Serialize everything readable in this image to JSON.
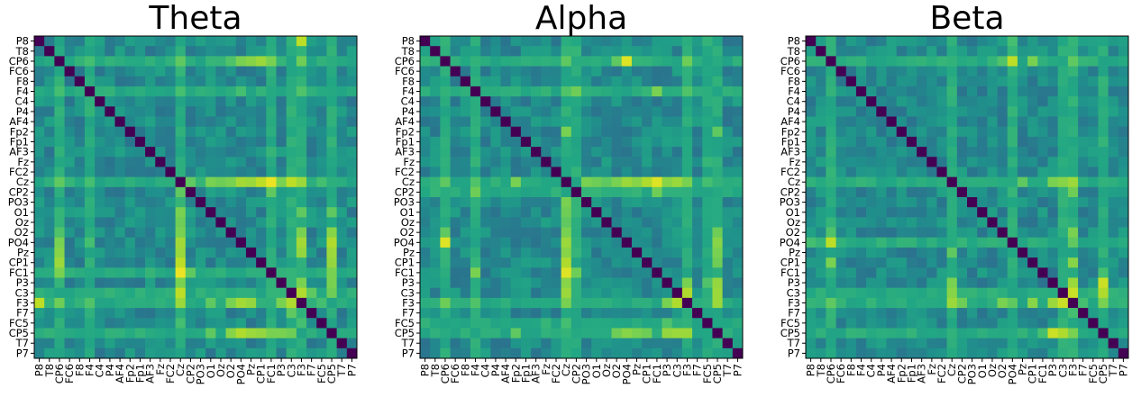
{
  "chart_data": {
    "type": "heatmap",
    "colormap": "viridis",
    "labels": [
      "P8",
      "T8",
      "CP6",
      "FC6",
      "F8",
      "F4",
      "C4",
      "P4",
      "AF4",
      "Fp2",
      "Fp1",
      "AF3",
      "Fz",
      "FC2",
      "Cz",
      "CP2",
      "PO3",
      "O1",
      "Oz",
      "O2",
      "PO4",
      "Pz",
      "CP1",
      "FC1",
      "P3",
      "C3",
      "F3",
      "F7",
      "FC5",
      "CP5",
      "T7",
      "P7"
    ],
    "value_range": [
      0,
      1
    ],
    "grid": false,
    "colorbar": false,
    "panels": [
      {
        "title": "Theta",
        "hubs": [
          {
            "label": "CP6",
            "values": {
              "F4": 0.7,
              "Cz": 0.75,
              "P4": 0.65,
              "O2": 0.72,
              "PO4": 0.8,
              "Pz": 0.82,
              "CP1": 0.85,
              "FC1": 0.8,
              "F3": 0.78
            }
          },
          {
            "label": "F4",
            "values": {
              "Cz": 0.7,
              "F3": 0.72,
              "PO4": 0.7
            }
          },
          {
            "label": "Cz",
            "values": {
              "CP2": 0.75,
              "O1": 0.8,
              "Oz": 0.78,
              "O2": 0.8,
              "PO4": 0.86,
              "Pz": 0.85,
              "CP1": 0.9,
              "FC1": 0.97,
              "P3": 0.8,
              "C3": 0.9,
              "F3": 0.85,
              "FC5": 0.7
            }
          },
          {
            "label": "F3",
            "values": {
              "P8": 0.9,
              "O1": 0.75,
              "O2": 0.8,
              "PO4": 0.86,
              "Pz": 0.84,
              "P3": 0.8,
              "C3": 0.88,
              "FC5": 0.7
            }
          },
          {
            "label": "CP5",
            "values": {
              "O1": 0.75,
              "O2": 0.82,
              "PO4": 0.88,
              "Pz": 0.85,
              "CP1": 0.84,
              "FC1": 0.8,
              "P3": 0.8,
              "C3": 0.78
            }
          },
          {
            "label": "C3",
            "values": {
              "F7": 0.75
            }
          },
          {
            "label": "FC1",
            "values": {
              "CP2": 0.75
            }
          }
        ]
      },
      {
        "title": "Alpha",
        "hubs": [
          {
            "label": "CP6",
            "values": {
              "PO4": 0.95,
              "F3": 0.78,
              "Cz": 0.75,
              "O2": 0.75
            }
          },
          {
            "label": "F4",
            "values": {
              "CP2": 0.78,
              "Cz": 0.72,
              "FC1": 0.8,
              "F3": 0.72
            }
          },
          {
            "label": "Cz",
            "values": {
              "Fp2": 0.8,
              "PO3": 0.8,
              "O1": 0.78,
              "Oz": 0.75,
              "O2": 0.8,
              "PO4": 0.85,
              "Pz": 0.82,
              "CP1": 0.88,
              "FC1": 0.95,
              "P3": 0.82,
              "C3": 0.85,
              "F3": 0.8,
              "FC5": 0.7
            }
          },
          {
            "label": "CP2",
            "values": {
              "FC1": 0.78
            }
          },
          {
            "label": "F3",
            "values": {
              "P3": 0.8,
              "C3": 0.88,
              "CP5": 0.78
            }
          },
          {
            "label": "CP5",
            "values": {
              "Fp2": 0.75,
              "O2": 0.78,
              "PO4": 0.82,
              "Pz": 0.8,
              "CP1": 0.78,
              "P3": 0.84,
              "C3": 0.85,
              "F3": 0.85
            }
          },
          {
            "label": "FC5",
            "values": {
              "P3": 0.72
            }
          }
        ]
      },
      {
        "title": "Beta",
        "hubs": [
          {
            "label": "CP6",
            "values": {
              "F4": 0.65,
              "O2": 0.72,
              "PO4": 0.9,
              "CP1": 0.8,
              "F3": 0.75
            }
          },
          {
            "label": "Cz",
            "values": {
              "Pz": 0.75,
              "P3": 0.8,
              "C3": 0.82,
              "F3": 0.85
            }
          },
          {
            "label": "F3",
            "values": {
              "Cz": 0.8,
              "CP2": 0.78,
              "O2": 0.8,
              "PO4": 0.75,
              "CP1": 0.82,
              "P3": 0.85,
              "C3": 0.92,
              "F7": 0.7
            }
          },
          {
            "label": "CP5",
            "values": {
              "P3": 0.92,
              "C3": 0.88,
              "F3": 0.8,
              "FC1": 0.7
            }
          },
          {
            "label": "C3",
            "values": {
              "CP5": 0.85
            }
          },
          {
            "label": "PO4",
            "values": {
              "P8": 0.7
            }
          }
        ]
      }
    ]
  }
}
